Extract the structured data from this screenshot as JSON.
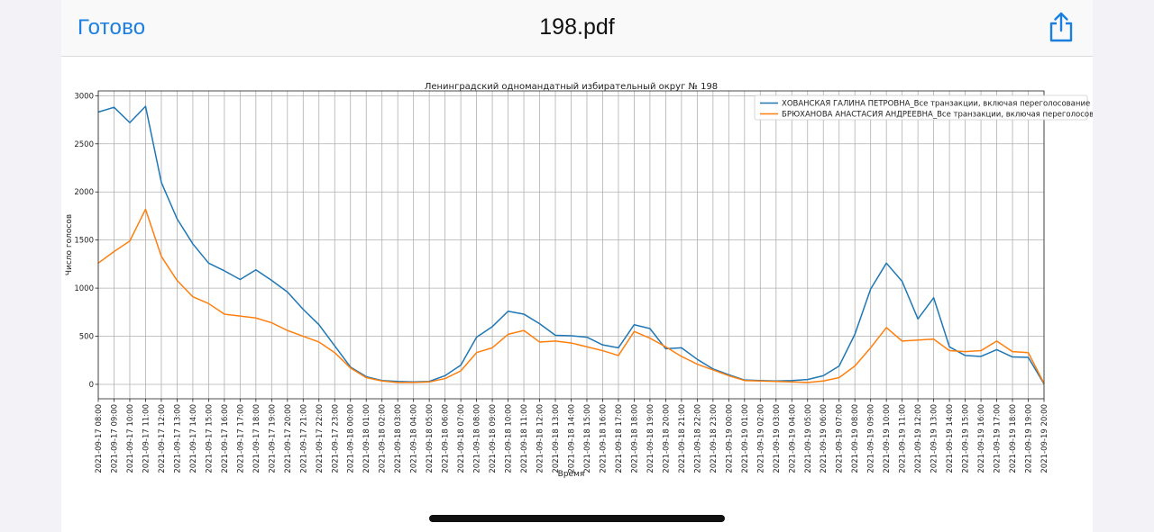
{
  "toolbar": {
    "done_label": "Готово",
    "file_name": "198.pdf",
    "share_icon": "share-icon"
  },
  "chart_data": {
    "type": "line",
    "title": "Ленинградский одномандатный избирательный округ № 198",
    "xlabel": "Время",
    "ylabel": "Число голосов",
    "ylim": [
      -150,
      3050
    ],
    "yticks": [
      0,
      500,
      1000,
      1500,
      2000,
      2500,
      3000
    ],
    "grid": true,
    "legend_position": "top-right",
    "categories": [
      "2021-09-17 08:00",
      "2021-09-17 09:00",
      "2021-09-17 10:00",
      "2021-09-17 11:00",
      "2021-09-17 12:00",
      "2021-09-17 13:00",
      "2021-09-17 14:00",
      "2021-09-17 15:00",
      "2021-09-17 16:00",
      "2021-09-17 17:00",
      "2021-09-17 18:00",
      "2021-09-17 19:00",
      "2021-09-17 20:00",
      "2021-09-17 21:00",
      "2021-09-17 22:00",
      "2021-09-17 23:00",
      "2021-09-18 00:00",
      "2021-09-18 01:00",
      "2021-09-18 02:00",
      "2021-09-18 03:00",
      "2021-09-18 04:00",
      "2021-09-18 05:00",
      "2021-09-18 06:00",
      "2021-09-18 07:00",
      "2021-09-18 08:00",
      "2021-09-18 09:00",
      "2021-09-18 10:00",
      "2021-09-18 11:00",
      "2021-09-18 12:00",
      "2021-09-18 13:00",
      "2021-09-18 14:00",
      "2021-09-18 15:00",
      "2021-09-18 16:00",
      "2021-09-18 17:00",
      "2021-09-18 18:00",
      "2021-09-18 19:00",
      "2021-09-18 20:00",
      "2021-09-18 21:00",
      "2021-09-18 22:00",
      "2021-09-18 23:00",
      "2021-09-19 00:00",
      "2021-09-19 01:00",
      "2021-09-19 02:00",
      "2021-09-19 03:00",
      "2021-09-19 04:00",
      "2021-09-19 05:00",
      "2021-09-19 06:00",
      "2021-09-19 07:00",
      "2021-09-19 08:00",
      "2021-09-19 09:00",
      "2021-09-19 10:00",
      "2021-09-19 11:00",
      "2021-09-19 12:00",
      "2021-09-19 13:00",
      "2021-09-19 14:00",
      "2021-09-19 15:00",
      "2021-09-19 16:00",
      "2021-09-19 17:00",
      "2021-09-19 18:00",
      "2021-09-19 19:00",
      "2021-09-19 20:00"
    ],
    "series": [
      {
        "name": "ХОВАНСКАЯ ГАЛИНА ПЕТРОВНА_Все транзакции, включая переголосование",
        "color": "#1f77b4",
        "values": [
          2830,
          2880,
          2720,
          2890,
          2100,
          1720,
          1460,
          1260,
          1180,
          1090,
          1190,
          1080,
          960,
          780,
          620,
          400,
          180,
          80,
          40,
          30,
          25,
          30,
          90,
          200,
          490,
          600,
          760,
          730,
          630,
          510,
          505,
          490,
          410,
          380,
          620,
          580,
          370,
          380,
          260,
          160,
          100,
          45,
          40,
          35,
          40,
          50,
          90,
          190,
          520,
          990,
          1260,
          1070,
          680,
          900,
          390,
          300,
          290,
          360,
          285,
          280,
          5
        ]
      },
      {
        "name": "БРЮХАНОВА АНАСТАСИЯ АНДРЕЕВНА_Все транзакции, включая переголосование",
        "color": "#ff7f0e",
        "values": [
          1260,
          1380,
          1490,
          1820,
          1330,
          1080,
          910,
          840,
          730,
          710,
          690,
          640,
          560,
          500,
          440,
          330,
          170,
          70,
          35,
          20,
          20,
          25,
          60,
          140,
          330,
          380,
          520,
          560,
          440,
          450,
          430,
          390,
          350,
          300,
          550,
          480,
          390,
          290,
          210,
          150,
          90,
          40,
          35,
          30,
          25,
          20,
          35,
          70,
          190,
          380,
          590,
          450,
          460,
          470,
          350,
          340,
          350,
          450,
          340,
          330,
          10
        ]
      }
    ]
  }
}
